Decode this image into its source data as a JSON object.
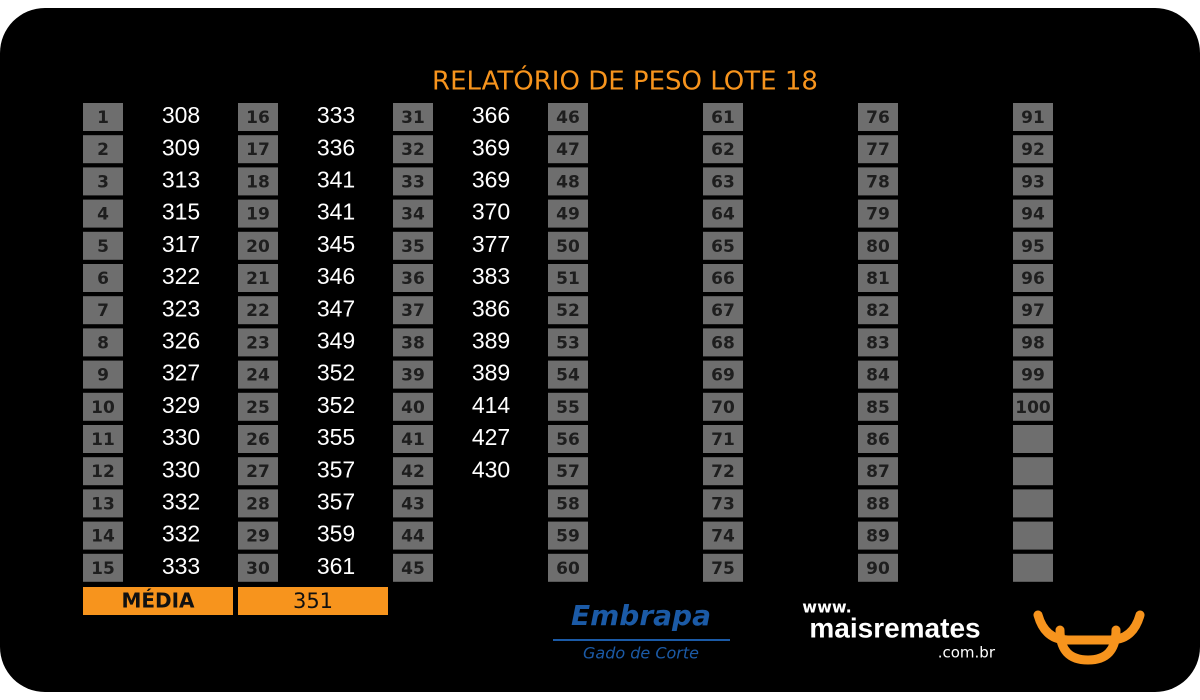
{
  "title": "RELATÓRIO DE PESO LOTE 18",
  "columns": [
    {
      "ids": [
        1,
        2,
        3,
        4,
        5,
        6,
        7,
        8,
        9,
        10,
        11,
        12,
        13,
        14,
        15
      ],
      "weights": [
        308,
        309,
        313,
        315,
        317,
        322,
        323,
        326,
        327,
        329,
        330,
        330,
        332,
        332,
        333
      ]
    },
    {
      "ids": [
        16,
        17,
        18,
        19,
        20,
        21,
        22,
        23,
        24,
        25,
        26,
        27,
        28,
        29,
        30
      ],
      "weights": [
        333,
        336,
        341,
        341,
        345,
        346,
        347,
        349,
        352,
        352,
        355,
        357,
        357,
        359,
        361
      ]
    },
    {
      "ids": [
        31,
        32,
        33,
        34,
        35,
        36,
        37,
        38,
        39,
        40,
        41,
        42,
        43,
        44,
        45
      ],
      "weights": [
        366,
        369,
        369,
        370,
        377,
        383,
        386,
        389,
        389,
        414,
        427,
        430
      ]
    },
    {
      "ids": [
        46,
        47,
        48,
        49,
        50,
        51,
        52,
        53,
        54,
        55,
        56,
        57,
        58,
        59,
        60
      ],
      "weights": []
    },
    {
      "ids": [
        61,
        62,
        63,
        64,
        65,
        66,
        67,
        68,
        69,
        70,
        71,
        72,
        73,
        74,
        75
      ],
      "weights": []
    },
    {
      "ids": [
        76,
        77,
        78,
        79,
        80,
        81,
        82,
        83,
        84,
        85,
        86,
        87,
        88,
        89,
        90
      ],
      "weights": []
    },
    {
      "ids": [
        91,
        92,
        93,
        94,
        95,
        96,
        97,
        98,
        99,
        100
      ],
      "weights": []
    }
  ],
  "average": {
    "label": "MÉDIA",
    "value": 351
  },
  "logos": {
    "embrapa": "Embrapa",
    "embrapa_sub": "Gado de Corte",
    "site_prefix": "www.",
    "site_name": "maisremates",
    "site_suffix": ".com.br"
  }
}
